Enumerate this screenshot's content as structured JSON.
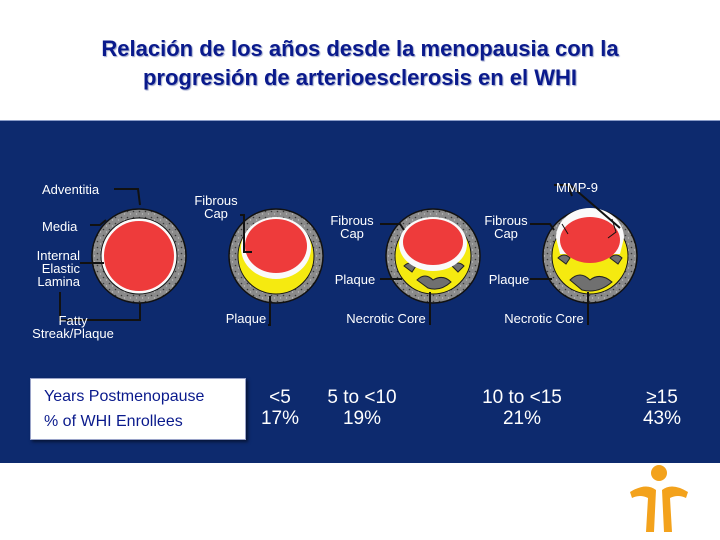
{
  "title": {
    "line1": "Relación de los años desde la menopausia con la",
    "line2": "progresión de arterioesclerosis en el WHI"
  },
  "diagram_labels": {
    "adventitia": "Adventitia",
    "media": "Media",
    "internal_elastic_lamina": "Internal\nElastic\nLamina",
    "fatty_streak_plaque": "Fatty\nStreak/Plaque",
    "fibrous_cap_1": "Fibrous\nCap",
    "fibrous_cap_2": "Fibrous\nCap",
    "fibrous_cap_3": "Fibrous\nCap",
    "plaque_1": "Plaque",
    "plaque_2": "Plaque",
    "plaque_3": "Plaque",
    "necrotic_core_1": "Necrotic Core",
    "necrotic_core_2": "Necrotic Core",
    "mmp9": "MMP-9"
  },
  "legend": {
    "years_label": "Years Postmenopause",
    "enrollees_label": "% of WHI Enrollees"
  },
  "groups": [
    {
      "years": "<5",
      "percent": "17%"
    },
    {
      "years": "5 to <10",
      "percent": "19%"
    },
    {
      "years": "10 to <15",
      "percent": "21%"
    },
    {
      "years": "≥15",
      "percent": "43%"
    }
  ],
  "colors": {
    "title": "#0a1a8c",
    "panel": "#0d2a6e",
    "lumen": "#ee3b3b",
    "plaque": "#f5ea10",
    "necrotic_core": "#707070",
    "vessel_wall": "#8a8a8a",
    "logo_orange": "#f3a21c"
  },
  "logo_icon": "person-figure-icon"
}
